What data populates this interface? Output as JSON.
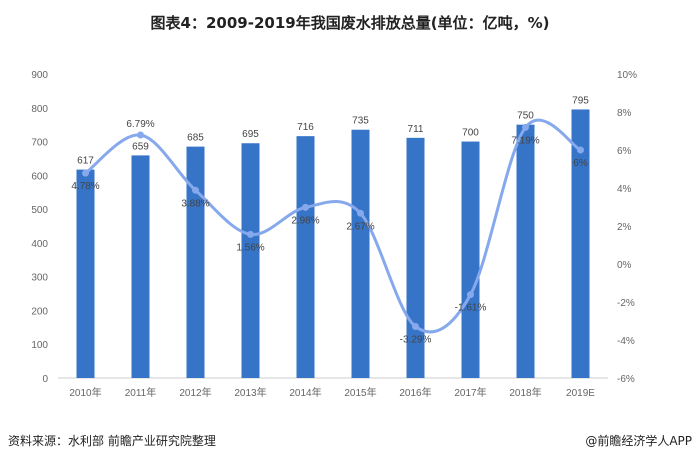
{
  "title": "图表4：2009-2019年我国废水排放总量(单位：亿吨，%)",
  "source": "资料来源：水利部 前瞻产业研究院整理",
  "brand": "@前瞻经济学人APP",
  "watermark": "前瞻产业研究院",
  "colors": {
    "bar": "#3674c8",
    "line": "#86a8ec"
  },
  "chart_data": {
    "type": "bar+line",
    "categories": [
      "2010年",
      "2011年",
      "2012年",
      "2013年",
      "2014年",
      "2015年",
      "2016年",
      "2017年",
      "2018年",
      "2019E"
    ],
    "series": [
      {
        "type": "bar",
        "axis": "left",
        "values": [
          617,
          659,
          685,
          695,
          716,
          735,
          711,
          700,
          750,
          795
        ],
        "labels": [
          "617",
          "659",
          "685",
          "695",
          "716",
          "735",
          "711",
          "700",
          "750",
          "795"
        ]
      },
      {
        "type": "line",
        "axis": "right",
        "smooth": true,
        "values": [
          4.78,
          6.79,
          3.88,
          1.56,
          2.98,
          2.67,
          -3.29,
          -1.61,
          7.19,
          6
        ],
        "labels": [
          "4.78%",
          "6.79%",
          "3.88%",
          "1.56%",
          "2.98%",
          "2.67%",
          "-3.29%",
          "-1.61%",
          "7.19%",
          "6%"
        ]
      }
    ],
    "left_axis": {
      "ylim": [
        0,
        900
      ],
      "ticks": [
        "0",
        "100",
        "200",
        "300",
        "400",
        "500",
        "600",
        "700",
        "800",
        "900"
      ]
    },
    "right_axis": {
      "ylim": [
        -6,
        10
      ],
      "ticks": [
        "-6%",
        "-4%",
        "-2%",
        "0%",
        "2%",
        "4%",
        "6%",
        "8%",
        "10%"
      ]
    },
    "grid": false
  }
}
